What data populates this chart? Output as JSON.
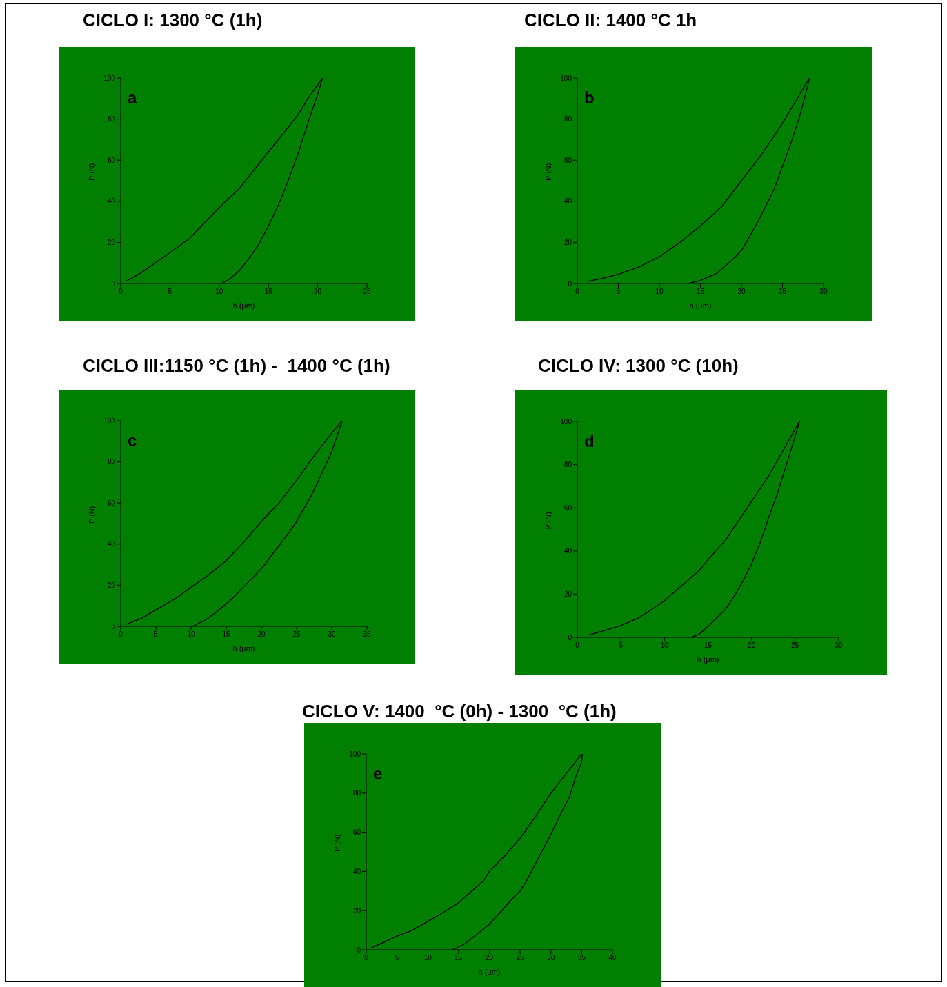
{
  "chart_data": [
    {
      "type": "line",
      "title": "CICLO I: 1300 °C (1h)",
      "xlabel": "h (μm)",
      "ylabel": "P (N)",
      "annotations": [
        "a"
      ],
      "xlim": [
        0,
        25
      ],
      "xticks": [
        0,
        5,
        10,
        15,
        20,
        25
      ],
      "ylim": [
        0,
        100
      ],
      "yticks": [
        0,
        20,
        40,
        60,
        80,
        100
      ],
      "line_style": "solid",
      "series": [
        {
          "color": "#000000",
          "x": [
            0.5,
            2,
            5,
            7,
            10,
            12,
            15,
            18,
            19,
            20.5
          ],
          "values": [
            1,
            5,
            15,
            22,
            37,
            46,
            64,
            82,
            90,
            100
          ]
        },
        {
          "color": "#000000",
          "x": [
            10.2,
            11,
            12,
            13,
            14,
            15,
            16,
            17,
            18,
            19,
            20,
            20.5
          ],
          "values": [
            0,
            2,
            6,
            12,
            19,
            28,
            38,
            50,
            63,
            78,
            92,
            100
          ]
        }
      ]
    },
    {
      "type": "line",
      "title": "CICLO II: 1400 °C 1h",
      "xlabel": "h (μm)",
      "ylabel": "P (N)",
      "annotations": [
        "b"
      ],
      "xlim": [
        0,
        30
      ],
      "xticks": [
        0,
        5,
        10,
        15,
        20,
        25,
        30
      ],
      "ylim": [
        0,
        100
      ],
      "yticks": [
        0,
        20,
        40,
        60,
        80,
        100
      ],
      "line_style": "solid",
      "series": [
        {
          "color": "#000000",
          "x": [
            1.2,
            3,
            5,
            7.5,
            10,
            12.5,
            15,
            17.5,
            20,
            22.5,
            25,
            28.3
          ],
          "values": [
            1,
            2.5,
            4.5,
            8,
            13,
            20,
            28,
            37,
            50,
            63,
            78,
            100
          ]
        },
        {
          "color": "#000000",
          "x": [
            13.5,
            15,
            17,
            19,
            20,
            21,
            22,
            23,
            24,
            25,
            26,
            27,
            28,
            28.3
          ],
          "values": [
            0,
            1.5,
            5,
            12,
            16,
            23,
            30,
            38,
            46,
            57,
            68,
            80,
            95,
            100
          ]
        }
      ]
    },
    {
      "type": "line",
      "title": "CICLO III:1150 °C (1h) -  1400 °C (1h)",
      "xlabel": "h (μm)",
      "ylabel": "P (N)",
      "annotations": [
        "c"
      ],
      "xlim": [
        0,
        35
      ],
      "xticks": [
        0,
        5,
        10,
        15,
        20,
        25,
        30,
        35
      ],
      "ylim": [
        0,
        100
      ],
      "yticks": [
        0,
        20,
        40,
        60,
        80,
        100
      ],
      "line_style": "solid",
      "series": [
        {
          "color": "#000000",
          "x": [
            0.8,
            3,
            5,
            8,
            10,
            12.5,
            15,
            17.5,
            20,
            22.5,
            25,
            27.5,
            30,
            31.5
          ],
          "values": [
            1,
            4,
            8,
            14,
            19,
            25,
            32,
            41,
            51,
            60,
            71,
            83,
            94,
            100
          ]
        },
        {
          "color": "#000000",
          "x": [
            10.2,
            12,
            14,
            16,
            18,
            20,
            22,
            24,
            25,
            26,
            27,
            28,
            30,
            31.5
          ],
          "values": [
            0,
            3,
            8,
            14,
            21,
            28,
            37,
            46,
            51,
            57,
            63,
            70,
            85,
            100
          ]
        }
      ]
    },
    {
      "type": "line",
      "title": "CICLO IV: 1300 °C (10h)",
      "xlabel": "h (μm)",
      "ylabel": "P (N)",
      "annotations": [
        "d"
      ],
      "xlim": [
        0,
        30
      ],
      "xticks": [
        0,
        5,
        10,
        15,
        20,
        25,
        30
      ],
      "ylim": [
        0,
        100
      ],
      "yticks": [
        0,
        20,
        40,
        60,
        80,
        100
      ],
      "line_style": "solid",
      "series": [
        {
          "color": "#000000",
          "x": [
            1.2,
            3,
            5,
            7,
            8,
            10,
            12,
            14,
            15,
            17,
            18,
            20,
            22,
            25.5
          ],
          "values": [
            1,
            3,
            5.5,
            9,
            11.5,
            17,
            24,
            31,
            36,
            45,
            51,
            63,
            75,
            100
          ]
        },
        {
          "color": "#000000",
          "x": [
            13,
            14,
            15,
            16,
            17,
            18,
            19,
            20,
            21,
            22,
            23,
            24,
            25,
            25.5
          ],
          "values": [
            0,
            1.5,
            5,
            9,
            13,
            19,
            26,
            34,
            44,
            56,
            67,
            80,
            93,
            100
          ]
        }
      ]
    },
    {
      "type": "line",
      "title": "CICLO V: 1400  °C (0h) - 1300  °C (1h)",
      "xlabel": "h (μm)",
      "ylabel": "P (N)",
      "annotations": [
        "e"
      ],
      "xlim": [
        0,
        40
      ],
      "xticks": [
        0,
        5,
        10,
        15,
        20,
        25,
        30,
        35,
        40
      ],
      "ylim": [
        0,
        100
      ],
      "yticks": [
        0,
        20,
        40,
        60,
        80,
        100
      ],
      "line_style": "solid",
      "series": [
        {
          "color": "#000000",
          "x": [
            0.8,
            3,
            5,
            7.5,
            10,
            12.5,
            15,
            17.5,
            19,
            20,
            22.5,
            25,
            27.5,
            30,
            32.5,
            35
          ],
          "values": [
            1,
            4,
            7,
            10,
            14.5,
            19,
            24,
            31,
            35,
            40,
            48,
            57,
            68,
            80,
            90,
            100
          ]
        },
        {
          "color": "#000000",
          "x": [
            14,
            16,
            18,
            20,
            22,
            24,
            25,
            26,
            28,
            30,
            32,
            33,
            34,
            35,
            35.1
          ],
          "values": [
            0,
            3,
            8,
            13,
            20,
            27,
            30,
            35,
            47,
            59,
            72,
            78,
            88,
            96,
            100
          ]
        }
      ]
    }
  ]
}
